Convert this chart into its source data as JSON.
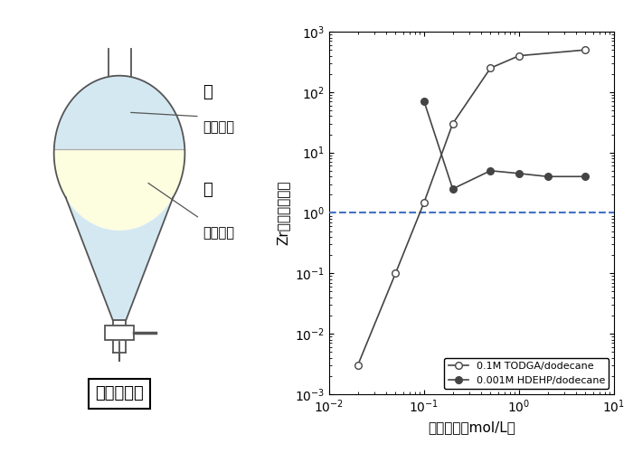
{
  "todga_x": [
    0.02,
    0.05,
    0.1,
    0.2,
    0.5,
    1.0,
    5.0
  ],
  "todga_y": [
    0.003,
    0.1,
    1.5,
    30,
    250,
    400,
    500
  ],
  "hdehp_x": [
    0.1,
    0.2,
    0.5,
    1.0,
    2.0,
    5.0
  ],
  "hdehp_y": [
    70,
    2.5,
    5.0,
    4.5,
    4.0,
    4.0
  ],
  "dashed_y": 1.0,
  "dashed_color": "#4472C4",
  "xlim": [
    0.01,
    10
  ],
  "ylim": [
    0.001,
    1000
  ],
  "xlabel": "睁酸濃度（mol/L）",
  "ylabel": "Zr分配比（－）",
  "legend1": "0.1M TODGA/dodecane",
  "legend2": "0.001M HDEHP/dodecane",
  "line_color": "#444444",
  "bg_color": "#ffffff",
  "funnel_oil_color": "#FDFDE0",
  "funnel_water_color": "#D4E8F2",
  "funnel_outline_color": "#555555",
  "funnel_label_oil": "油",
  "funnel_label_oil2": "（抜出劑",
  "funnel_label_water": "水",
  "funnel_label_water2": "（模擬廢",
  "funnel_caption": "溶媒抜出法",
  "axis_fontsize": 11,
  "tick_fontsize": 10
}
